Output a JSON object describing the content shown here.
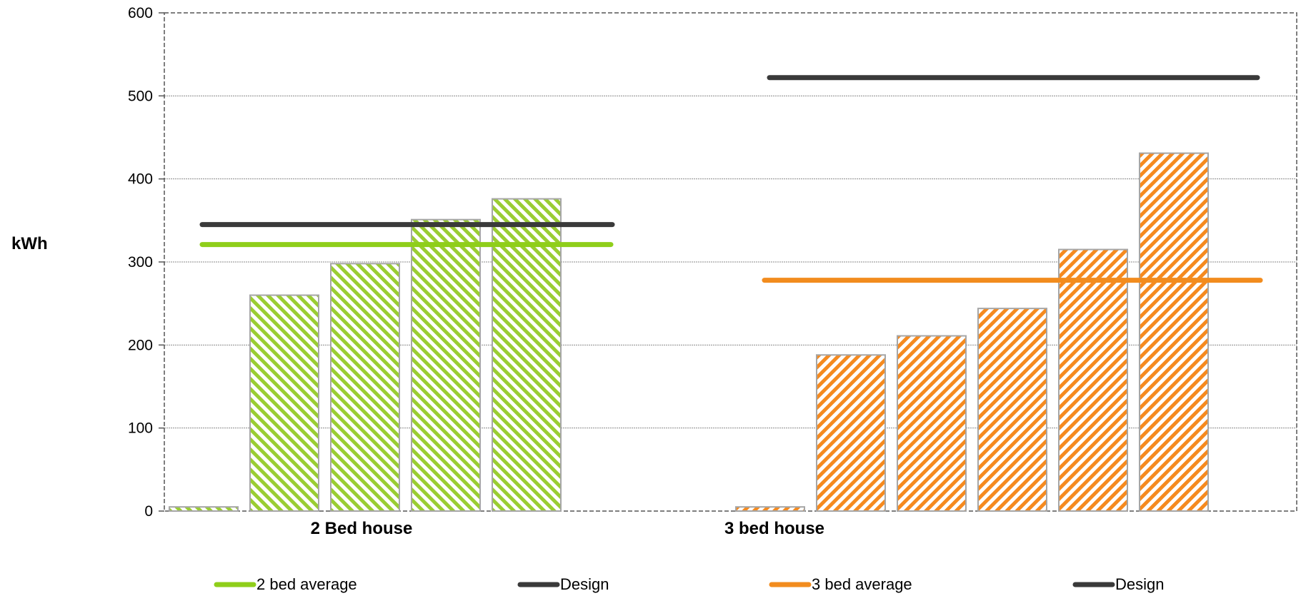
{
  "chart_data": {
    "type": "bar",
    "ylabel": "kWh",
    "ylim": [
      0,
      600
    ],
    "yticks": [
      "0",
      "100",
      "200",
      "300",
      "400",
      "500",
      "600"
    ],
    "grid": true,
    "legend_position": "bottom",
    "groups": [
      {
        "label": "2 Bed house",
        "color": "#9acd32",
        "values": [
          5,
          260,
          298,
          351,
          376
        ],
        "average": {
          "name": "2 bed average",
          "value": 321,
          "color": "#8fce1a"
        },
        "design": {
          "name": "Design",
          "value": 345,
          "color": "#3a3a3a"
        }
      },
      {
        "label": "3 bed house",
        "color": "#f58a1f",
        "values": [
          5,
          188,
          211,
          244,
          315,
          431
        ],
        "average": {
          "name": "3 bed average",
          "value": 278,
          "color": "#f28c1e"
        },
        "design": {
          "name": "Design",
          "value": 522,
          "color": "#3a3a3a"
        }
      }
    ],
    "legend": [
      {
        "label": "2 bed average",
        "color": "#8fce1a"
      },
      {
        "label": "Design",
        "color": "#3a3a3a"
      },
      {
        "label": "3 bed average",
        "color": "#f28c1e"
      },
      {
        "label": "Design",
        "color": "#3a3a3a"
      }
    ]
  }
}
